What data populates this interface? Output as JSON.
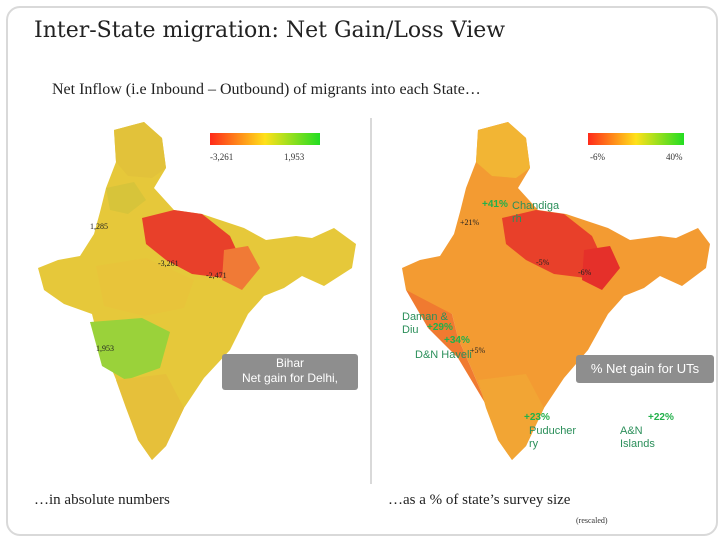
{
  "title": "Inter-State migration: Net Gain/Loss View",
  "subtitle": "Net Inflow (i.e Inbound – Outbound) of  migrants into each State…",
  "left_map": {
    "legend": {
      "min": "-3,261",
      "max": "1,953",
      "colors": [
        "#ff2a1a",
        "#ffe11a",
        "#22dd22"
      ]
    },
    "labels": {
      "punjab": "1,285",
      "up": "-3,261",
      "bihar": "-2,471",
      "maharashtra": "1,953"
    },
    "callout": {
      "line1": "Bihar",
      "line2": "Net gain for Delhi,"
    },
    "footer": "…in absolute numbers"
  },
  "right_map": {
    "legend": {
      "min": "-6%",
      "max": "40%",
      "colors": [
        "#ff2a1a",
        "#ffe11a",
        "#22dd22"
      ]
    },
    "labels": {
      "punjab": "+21%",
      "up": "-5%",
      "bihar": "-6%",
      "mh": "+5%"
    },
    "green_values": {
      "chandigarh": "+41%",
      "daman": "+29%",
      "dnh": "+34%",
      "puducherry": "+23%",
      "andaman": "+22%"
    },
    "ut_names": {
      "chandigarh": "Chandiga\nrh",
      "daman": "Daman &\nDiu",
      "dnh": "D&N Haveli",
      "puducherry": "Puducher\nry",
      "andaman": "A&N\nIslands"
    },
    "callout": "% Net gain for UTs",
    "footer": "…as a % of state’s survey size",
    "note": "(rescaled)"
  },
  "colors": {
    "loss": "#e8402a",
    "neutral": "#e6c83a",
    "gain": "#8fd03a",
    "ut_text": "#2b8f5a",
    "ut_value": "#22b04a"
  }
}
